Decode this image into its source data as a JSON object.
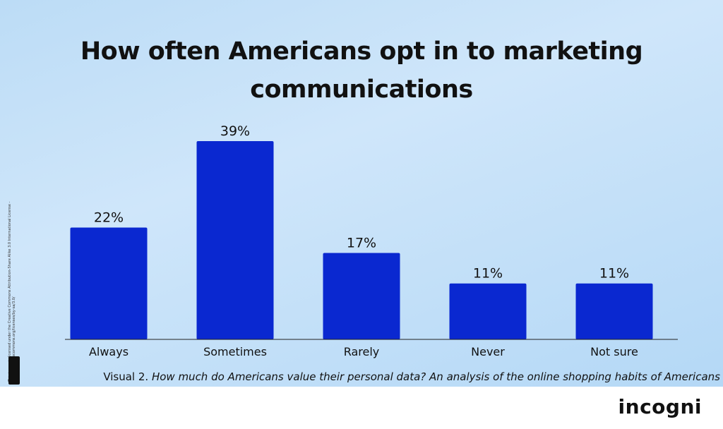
{
  "chart_data": {
    "type": "bar",
    "title": "How often Americans opt in to marketing communications",
    "categories": [
      "Always",
      "Sometimes",
      "Rarely",
      "Never",
      "Not sure"
    ],
    "values": [
      22,
      39,
      17,
      11,
      11
    ],
    "value_labels": [
      "22%",
      "39%",
      "17%",
      "11%",
      "11%"
    ],
    "xlabel": "",
    "ylabel": "",
    "ylim": [
      0,
      39
    ],
    "grid": false,
    "bar_color": "#0a28d0"
  },
  "caption": {
    "prefix": "Visual 2. ",
    "source": "How much do Americans value their personal data? An analysis of the online shopping habits of Americans"
  },
  "license": "This image is licensed under the Creative Commons Attribution-Share Alike 3.0 International License - https://creativecommons.org/licenses/by-sa/3.0/",
  "logo": "incogni"
}
